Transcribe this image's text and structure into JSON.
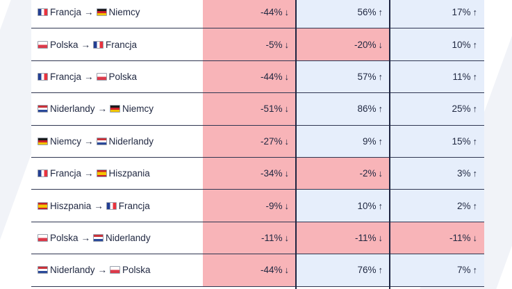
{
  "rows": [
    {
      "from": "Francja",
      "from_flag": "fr",
      "to": "Niemcy",
      "to_flag": "de",
      "v1": "-44%",
      "a1": "↓",
      "s1": "neg",
      "v2": "56%",
      "a2": "↑",
      "s2": "pos",
      "v3": "17%",
      "a3": "↑",
      "s3": "pos"
    },
    {
      "from": "Polska",
      "from_flag": "pl",
      "to": "Francja",
      "to_flag": "fr",
      "v1": "-5%",
      "a1": "↓",
      "s1": "neg",
      "v2": "-20%",
      "a2": "↓",
      "s2": "neg",
      "v3": "10%",
      "a3": "↑",
      "s3": "pos"
    },
    {
      "from": "Francja",
      "from_flag": "fr",
      "to": "Polska",
      "to_flag": "pl",
      "v1": "-44%",
      "a1": "↓",
      "s1": "neg",
      "v2": "57%",
      "a2": "↑",
      "s2": "pos",
      "v3": "11%",
      "a3": "↑",
      "s3": "pos"
    },
    {
      "from": "Niderlandy",
      "from_flag": "nl",
      "to": "Niemcy",
      "to_flag": "de",
      "v1": "-51%",
      "a1": "↓",
      "s1": "neg",
      "v2": "86%",
      "a2": "↑",
      "s2": "pos",
      "v3": "25%",
      "a3": "↑",
      "s3": "pos"
    },
    {
      "from": "Niemcy",
      "from_flag": "de",
      "to": "Niderlandy",
      "to_flag": "nl",
      "v1": "-27%",
      "a1": "↓",
      "s1": "neg",
      "v2": "9%",
      "a2": "↑",
      "s2": "pos",
      "v3": "15%",
      "a3": "↑",
      "s3": "pos"
    },
    {
      "from": "Francja",
      "from_flag": "fr",
      "to": "Hiszpania",
      "to_flag": "es",
      "v1": "-34%",
      "a1": "↓",
      "s1": "neg",
      "v2": "-2%",
      "a2": "↓",
      "s2": "neg",
      "v3": "3%",
      "a3": "↑",
      "s3": "pos"
    },
    {
      "from": "Hiszpania",
      "from_flag": "es",
      "to": "Francja",
      "to_flag": "fr",
      "v1": "-9%",
      "a1": "↓",
      "s1": "neg",
      "v2": "10%",
      "a2": "↑",
      "s2": "pos",
      "v3": "2%",
      "a3": "↑",
      "s3": "pos"
    },
    {
      "from": "Polska",
      "from_flag": "pl",
      "to": "Niderlandy",
      "to_flag": "nl",
      "v1": "-11%",
      "a1": "↓",
      "s1": "neg",
      "v2": "-11%",
      "a2": "↓",
      "s2": "neg",
      "v3": "-11%",
      "a3": "↓",
      "s3": "neg"
    },
    {
      "from": "Niderlandy",
      "from_flag": "nl",
      "to": "Polska",
      "to_flag": "pl",
      "v1": "-44%",
      "a1": "↓",
      "s1": "neg",
      "v2": "76%",
      "a2": "↑",
      "s2": "pos",
      "v3": "7%",
      "a3": "↑",
      "s3": "pos"
    }
  ],
  "route_separator": "→",
  "colors": {
    "negative": "#f8b4b8",
    "positive": "#e6eefb",
    "divider": "#1d2440"
  }
}
